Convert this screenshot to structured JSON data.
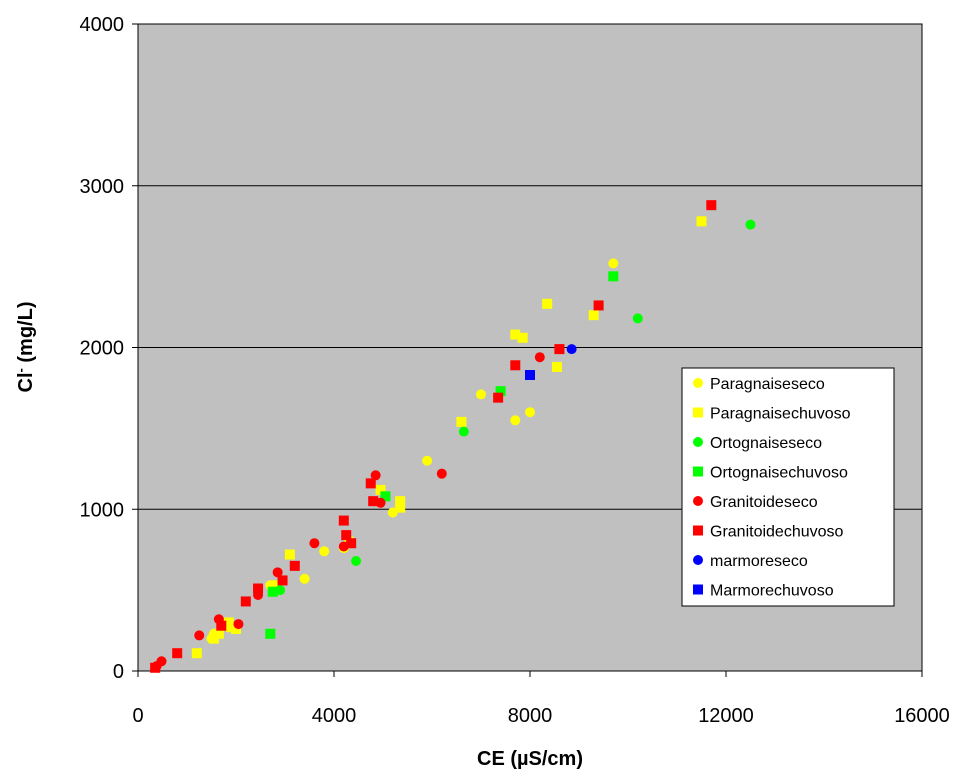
{
  "chart_data": {
    "type": "scatter",
    "title": "",
    "xlabel": "CE (µS/cm)",
    "ylabel_main": "Cl",
    "ylabel_sup": "-",
    "ylabel_unit": " (mg/L)",
    "xlim": [
      0,
      16000
    ],
    "ylim": [
      0,
      4000
    ],
    "x_ticks": [
      0,
      4000,
      8000,
      12000,
      16000
    ],
    "y_ticks": [
      0,
      1000,
      2000,
      3000,
      4000
    ],
    "y_gridlines": true,
    "x_gridlines": false,
    "plot_background": "#c0c0c0",
    "legend_placement": "right",
    "series": [
      {
        "name": "Paragnaiseseco",
        "marker": "circle",
        "color": "#ffff00",
        "points": [
          [
            1500,
            200
          ],
          [
            1550,
            230
          ],
          [
            1850,
            270
          ],
          [
            2700,
            530
          ],
          [
            3400,
            570
          ],
          [
            3800,
            740
          ],
          [
            4200,
            760
          ],
          [
            5200,
            980
          ],
          [
            5900,
            1300
          ],
          [
            7000,
            1710
          ],
          [
            7700,
            1550
          ],
          [
            8000,
            1600
          ],
          [
            9700,
            2520
          ]
        ]
      },
      {
        "name": "Paragnaisechuvoso",
        "marker": "square",
        "color": "#ffff00",
        "points": [
          [
            1200,
            110
          ],
          [
            1550,
            200
          ],
          [
            1650,
            230
          ],
          [
            1850,
            300
          ],
          [
            2000,
            260
          ],
          [
            2800,
            530
          ],
          [
            3100,
            720
          ],
          [
            4300,
            800
          ],
          [
            4950,
            1120
          ],
          [
            5350,
            1050
          ],
          [
            5350,
            1010
          ],
          [
            6600,
            1540
          ],
          [
            7700,
            2080
          ],
          [
            7850,
            2060
          ],
          [
            8350,
            2270
          ],
          [
            8550,
            1880
          ],
          [
            9300,
            2200
          ],
          [
            11500,
            2780
          ]
        ]
      },
      {
        "name": "Ortognaiseseco",
        "marker": "circle",
        "color": "#00ff00",
        "points": [
          [
            2900,
            500
          ],
          [
            4450,
            680
          ],
          [
            6650,
            1480
          ],
          [
            10200,
            2180
          ],
          [
            12500,
            2760
          ]
        ]
      },
      {
        "name": "Ortognaisechuvoso",
        "marker": "square",
        "color": "#00ff00",
        "points": [
          [
            2700,
            230
          ],
          [
            2750,
            490
          ],
          [
            5050,
            1080
          ],
          [
            7400,
            1730
          ],
          [
            9700,
            2440
          ]
        ]
      },
      {
        "name": "Granitoideseco",
        "marker": "circle",
        "color": "#ff0000",
        "points": [
          [
            380,
            30
          ],
          [
            480,
            60
          ],
          [
            1250,
            220
          ],
          [
            1650,
            320
          ],
          [
            2050,
            290
          ],
          [
            2450,
            470
          ],
          [
            2850,
            610
          ],
          [
            3600,
            790
          ],
          [
            4200,
            770
          ],
          [
            4850,
            1210
          ],
          [
            4950,
            1040
          ],
          [
            6200,
            1220
          ],
          [
            8200,
            1940
          ]
        ]
      },
      {
        "name": "Granitoidechuvoso",
        "marker": "square",
        "color": "#ff0000",
        "points": [
          [
            350,
            20
          ],
          [
            800,
            110
          ],
          [
            1700,
            280
          ],
          [
            2200,
            430
          ],
          [
            2450,
            510
          ],
          [
            2950,
            560
          ],
          [
            3200,
            650
          ],
          [
            4200,
            930
          ],
          [
            4250,
            840
          ],
          [
            4350,
            790
          ],
          [
            4750,
            1160
          ],
          [
            4800,
            1050
          ],
          [
            7350,
            1690
          ],
          [
            7700,
            1890
          ],
          [
            8600,
            1990
          ],
          [
            9400,
            2260
          ],
          [
            11700,
            2880
          ]
        ]
      },
      {
        "name": "marmoreseco",
        "marker": "circle",
        "color": "#0000ff",
        "points": [
          [
            8850,
            1990
          ]
        ]
      },
      {
        "name": "Marmorechuvoso",
        "marker": "square",
        "color": "#0000ff",
        "points": [
          [
            8000,
            1830
          ]
        ]
      }
    ]
  }
}
